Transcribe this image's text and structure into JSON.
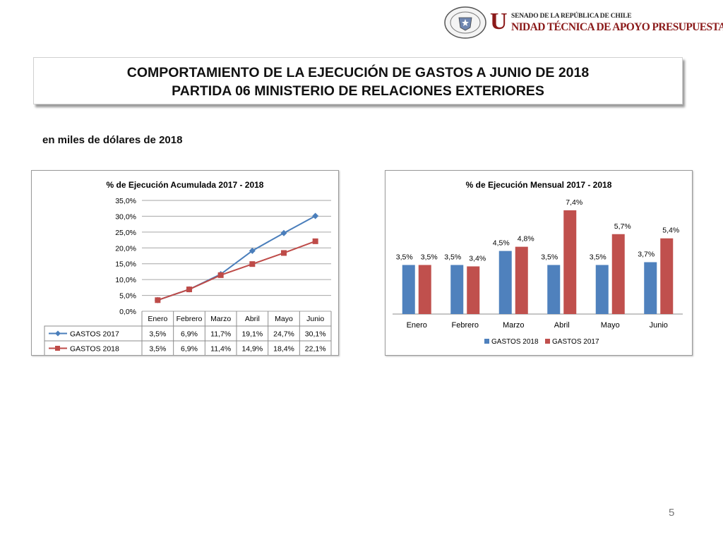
{
  "header": {
    "logo_seal_text": "REPÚBLICA DE CHILE · SENADO",
    "logo_initial": "U",
    "logo_line1": "SENADO DE LA REPÚBLICA DE CHILE",
    "logo_line2": "NIDAD TÉCNICA DE APOYO PRESUPUESTARIO",
    "brand_color": "#8b1a1a"
  },
  "title": {
    "line1": "COMPORTAMIENTO DE LA EJECUCIÓN DE GASTOS A JUNIO DE 2018",
    "line2": "PARTIDA 06 MINISTERIO DE RELACIONES EXTERIORES"
  },
  "subtitle": "en miles de dólares de 2018",
  "page_number": "5",
  "chart_data": [
    {
      "type": "line",
      "title": "% de Ejecución Acumulada 2017 - 2018",
      "categories": [
        "Enero",
        "Febrero",
        "Marzo",
        "Abril",
        "Mayo",
        "Junio"
      ],
      "ylim": [
        0,
        35
      ],
      "yticks": [
        "0,0%",
        "5,0%",
        "10,0%",
        "15,0%",
        "20,0%",
        "25,0%",
        "30,0%",
        "35,0%"
      ],
      "grid": true,
      "legend": "data-table",
      "series": [
        {
          "name": "GASTOS 2017",
          "color": "#4a7ebb",
          "marker": "diamond",
          "values": [
            3.5,
            6.9,
            11.7,
            19.1,
            24.7,
            30.1
          ],
          "labels": [
            "3,5%",
            "6,9%",
            "11,7%",
            "19,1%",
            "24,7%",
            "30,1%"
          ]
        },
        {
          "name": "GASTOS 2018",
          "color": "#be4b48",
          "marker": "square",
          "values": [
            3.5,
            6.9,
            11.4,
            14.9,
            18.4,
            22.1
          ],
          "labels": [
            "3,5%",
            "6,9%",
            "11,4%",
            "14,9%",
            "18,4%",
            "22,1%"
          ]
        }
      ]
    },
    {
      "type": "bar",
      "title": "% de Ejecución Mensual 2017 - 2018",
      "categories": [
        "Enero",
        "Febrero",
        "Marzo",
        "Abril",
        "Mayo",
        "Junio"
      ],
      "ylim": [
        0,
        7.4
      ],
      "grid": false,
      "legend": "bottom",
      "series": [
        {
          "name": "GASTOS 2018",
          "color": "#4f81bd",
          "values": [
            3.5,
            3.5,
            4.5,
            3.5,
            3.5,
            3.7
          ],
          "labels": [
            "3,5%",
            "3,5%",
            "4,5%",
            "3,5%",
            "3,5%",
            "3,7%"
          ]
        },
        {
          "name": "GASTOS 2017",
          "color": "#c0504d",
          "values": [
            3.5,
            3.4,
            4.8,
            7.4,
            5.7,
            5.4
          ],
          "labels": [
            "3,5%",
            "3,4%",
            "4,8%",
            "7,4%",
            "5,7%",
            "5,4%"
          ]
        }
      ]
    }
  ]
}
